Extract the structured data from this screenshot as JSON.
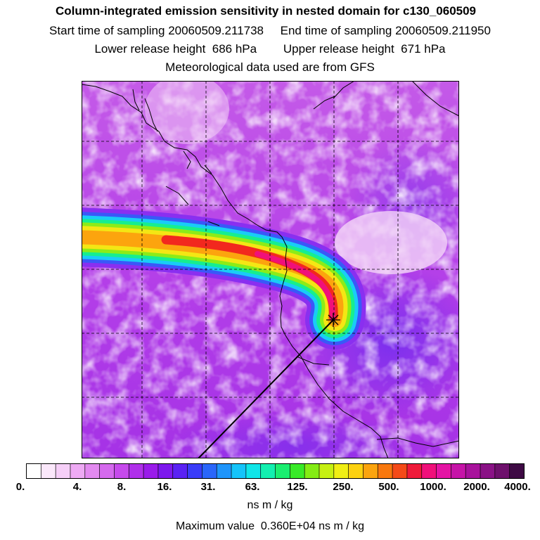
{
  "header": {
    "title": "Column-integrated emission sensitivity in nested domain for c130_060509",
    "start_label": "Start time of sampling",
    "start_value": "20060509.211738",
    "end_label": "End time of sampling",
    "end_value": "20060509.211950",
    "lower_label": "Lower release height",
    "lower_value": "686 hPa",
    "upper_label": "Upper release height",
    "upper_value": "671 hPa",
    "met_note": "Meteorological data used are from GFS"
  },
  "colorbar": {
    "ticks": [
      "0.",
      "4.",
      "8.",
      "16.",
      "31.",
      "63.",
      "125.",
      "250.",
      "500.",
      "1000.",
      "2000.",
      "4000."
    ],
    "units": "ns m / kg",
    "colors": [
      "#ffffff",
      "#fbe8fb",
      "#f6cff8",
      "#eeaaf4",
      "#e38af0",
      "#d56aee",
      "#c64aec",
      "#b030ea",
      "#9a1bea",
      "#7d18ee",
      "#5a22f4",
      "#3a3cf8",
      "#2a66fa",
      "#1f95fb",
      "#15c4fa",
      "#10e6e8",
      "#12f0b0",
      "#1aee70",
      "#38ea28",
      "#84ec14",
      "#c6f012",
      "#f0ee14",
      "#fcd110",
      "#fba40e",
      "#f8780e",
      "#f44a18",
      "#ef1a3a",
      "#f0107a",
      "#e414a4",
      "#c614a8",
      "#a8129c",
      "#8a1286",
      "#6e106c",
      "#3e0a44"
    ]
  },
  "footer": {
    "max_label": "Maximum value",
    "max_value": "0.360E+04 ns m / kg"
  }
}
